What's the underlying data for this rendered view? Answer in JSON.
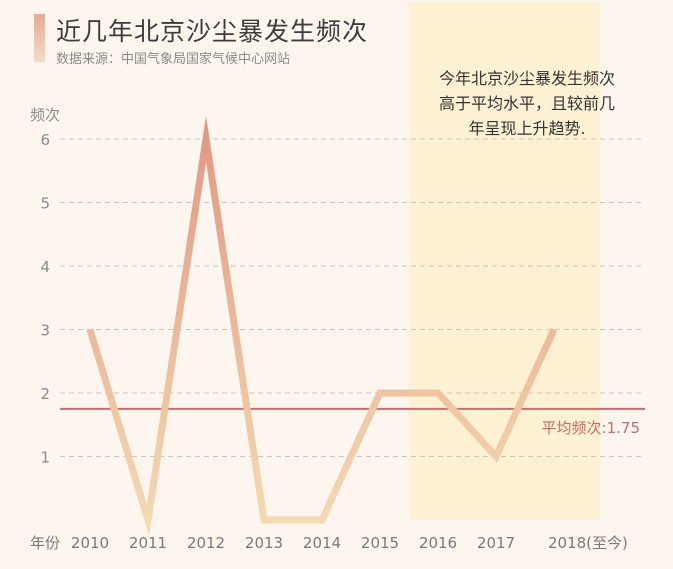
{
  "header": {
    "title": "近几年北京沙尘暴发生频次",
    "source": "数据来源：中国气象局国家气候中心网站"
  },
  "annotation": {
    "lines": [
      "今年北京沙尘暴发生频次",
      "高于平均水平，且较前几",
      "年呈现上升趋势."
    ]
  },
  "colors": {
    "background": "#fdf6ef",
    "highlight_band": "#fcf2d3",
    "line_light": "#f4d9b2",
    "line_dark": "#e39a84",
    "average_line": "#cf6a72"
  },
  "chart_data": {
    "type": "line",
    "ylabel": "频次",
    "xlabel_prefix": "年份",
    "categories": [
      "2010",
      "2011",
      "2012",
      "2013",
      "2014",
      "2015",
      "2016",
      "2017",
      "2018(至今)"
    ],
    "x": [
      2010,
      2011,
      2012,
      2013,
      2014,
      2015,
      2016,
      2017,
      2018
    ],
    "series": [
      {
        "values": [
          3,
          0,
          6,
          0,
          0,
          2,
          2,
          1,
          3
        ]
      }
    ],
    "yticks": [
      1,
      2,
      3,
      4,
      5,
      6
    ],
    "ylim": [
      0,
      6
    ],
    "grid": "horizontal dashed",
    "average": {
      "value": 1.75,
      "label": "平均频次:1.75"
    },
    "highlight_range": [
      2015.5,
      2018.8
    ]
  }
}
